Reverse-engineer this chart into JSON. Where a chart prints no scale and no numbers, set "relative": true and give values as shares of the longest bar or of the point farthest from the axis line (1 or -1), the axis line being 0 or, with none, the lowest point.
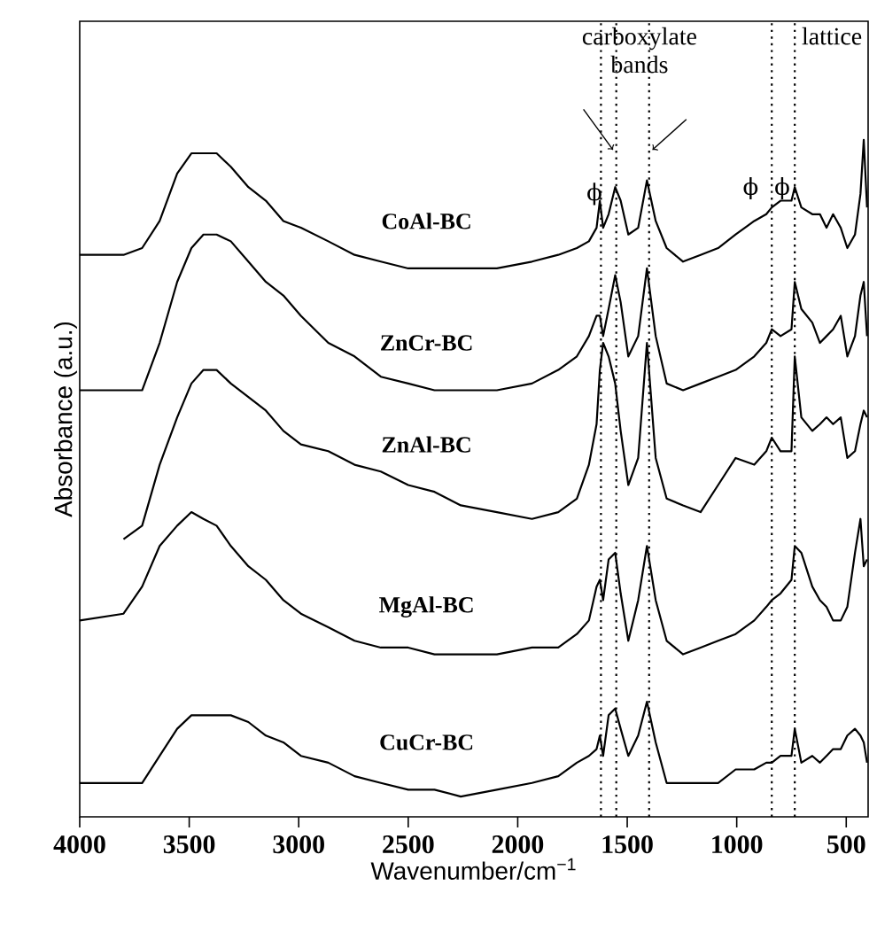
{
  "chart_data": {
    "type": "line",
    "relative": true,
    "xlabel": "Wavenumber/cm$^{−1}$",
    "ylabel": "Absorbance (a.u.)",
    "xlim": [
      4000,
      400
    ],
    "xticks": [
      4000,
      3500,
      3000,
      2500,
      2000,
      1500,
      1000,
      500
    ],
    "x": [
      4000,
      3800,
      3715,
      3635,
      3555,
      3490,
      3435,
      3375,
      3310,
      3230,
      3150,
      3070,
      2990,
      2865,
      2745,
      2625,
      2500,
      2380,
      2260,
      2095,
      1935,
      1815,
      1730,
      1675,
      1640,
      1625,
      1610,
      1585,
      1555,
      1530,
      1495,
      1450,
      1410,
      1370,
      1320,
      1245,
      1165,
      1085,
      1005,
      920,
      865,
      840,
      800,
      750,
      735,
      705,
      655,
      620,
      590,
      560,
      525,
      495,
      460,
      435,
      420,
      405
    ],
    "series": [
      {
        "name": "CoAl-BC",
        "color": "#000000",
        "values": [
          0.83,
          0.83,
          0.84,
          0.88,
          0.95,
          0.98,
          0.98,
          0.98,
          0.96,
          0.93,
          0.91,
          0.88,
          0.87,
          0.85,
          0.83,
          0.82,
          0.81,
          0.81,
          0.81,
          0.81,
          0.82,
          0.83,
          0.84,
          0.85,
          0.87,
          0.91,
          0.87,
          0.89,
          0.93,
          0.91,
          0.86,
          0.87,
          0.94,
          0.88,
          0.84,
          0.82,
          0.83,
          0.84,
          0.86,
          0.88,
          0.89,
          0.9,
          0.91,
          0.91,
          0.93,
          0.9,
          0.89,
          0.89,
          0.87,
          0.89,
          0.87,
          0.84,
          0.86,
          0.92,
          1.0,
          0.9
        ]
      },
      {
        "name": "ZnCr-BC",
        "color": "#000000",
        "values": [
          0.63,
          0.63,
          0.63,
          0.7,
          0.79,
          0.84,
          0.86,
          0.86,
          0.85,
          0.82,
          0.79,
          0.77,
          0.74,
          0.7,
          0.68,
          0.65,
          0.64,
          0.63,
          0.63,
          0.63,
          0.64,
          0.66,
          0.68,
          0.71,
          0.74,
          0.74,
          0.71,
          0.75,
          0.8,
          0.76,
          0.68,
          0.71,
          0.81,
          0.71,
          0.64,
          0.63,
          0.64,
          0.65,
          0.66,
          0.68,
          0.7,
          0.72,
          0.71,
          0.72,
          0.79,
          0.75,
          0.73,
          0.7,
          0.71,
          0.72,
          0.74,
          0.68,
          0.71,
          0.77,
          0.79,
          0.71
        ]
      },
      {
        "name": "ZnAl-BC",
        "color": "#000000",
        "values": [
          null,
          0.41,
          0.43,
          0.52,
          0.59,
          0.64,
          0.66,
          0.66,
          0.64,
          0.62,
          0.6,
          0.57,
          0.55,
          0.54,
          0.52,
          0.51,
          0.49,
          0.48,
          0.46,
          0.45,
          0.44,
          0.45,
          0.47,
          0.52,
          0.58,
          0.66,
          0.7,
          0.68,
          0.64,
          0.57,
          0.49,
          0.53,
          0.7,
          0.53,
          0.47,
          0.46,
          0.45,
          0.49,
          0.53,
          0.52,
          0.54,
          0.56,
          0.54,
          0.54,
          0.68,
          0.59,
          0.57,
          0.58,
          0.59,
          0.58,
          0.59,
          0.53,
          0.54,
          0.58,
          0.6,
          0.59
        ]
      },
      {
        "name": "MgAl-BC",
        "color": "#000000",
        "values": [
          0.29,
          0.3,
          0.34,
          0.4,
          0.43,
          0.45,
          0.44,
          0.43,
          0.4,
          0.37,
          0.35,
          0.32,
          0.3,
          0.28,
          0.26,
          0.25,
          0.25,
          0.24,
          0.24,
          0.24,
          0.25,
          0.25,
          0.27,
          0.29,
          0.34,
          0.35,
          0.32,
          0.38,
          0.39,
          0.33,
          0.26,
          0.32,
          0.4,
          0.32,
          0.26,
          0.24,
          0.25,
          0.26,
          0.27,
          0.29,
          0.31,
          0.32,
          0.33,
          0.35,
          0.4,
          0.39,
          0.34,
          0.32,
          0.31,
          0.29,
          0.29,
          0.31,
          0.39,
          0.44,
          0.37,
          0.38
        ]
      },
      {
        "name": "CuCr-BC",
        "color": "#000000",
        "values": [
          0.05,
          0.05,
          0.05,
          0.09,
          0.13,
          0.15,
          0.15,
          0.15,
          0.15,
          0.14,
          0.12,
          0.11,
          0.09,
          0.08,
          0.06,
          0.05,
          0.04,
          0.04,
          0.03,
          0.04,
          0.05,
          0.06,
          0.08,
          0.09,
          0.1,
          0.12,
          0.09,
          0.15,
          0.16,
          0.13,
          0.09,
          0.12,
          0.17,
          0.11,
          0.05,
          0.05,
          0.05,
          0.05,
          0.07,
          0.07,
          0.08,
          0.08,
          0.09,
          0.09,
          0.13,
          0.08,
          0.09,
          0.08,
          0.09,
          0.1,
          0.1,
          0.12,
          0.13,
          0.12,
          0.11,
          0.08
        ]
      }
    ],
    "ref_lines": [
      {
        "axis": "x",
        "value": 1620,
        "line_style": "dotted",
        "color": "#000000"
      },
      {
        "axis": "x",
        "value": 1550,
        "line_style": "dotted",
        "color": "#000000"
      },
      {
        "axis": "x",
        "value": 1400,
        "line_style": "dotted",
        "color": "#000000"
      },
      {
        "axis": "x",
        "value": 840,
        "line_style": "dotted",
        "color": "#000000"
      },
      {
        "axis": "x",
        "value": 735,
        "line_style": "dotted",
        "color": "#000000"
      }
    ],
    "annotations": [
      "carboxylate bands",
      "lattice",
      {
        "text": "ϕ",
        "x": 1650,
        "y": 0.92
      },
      "ϕ",
      "ϕ"
    ]
  }
}
